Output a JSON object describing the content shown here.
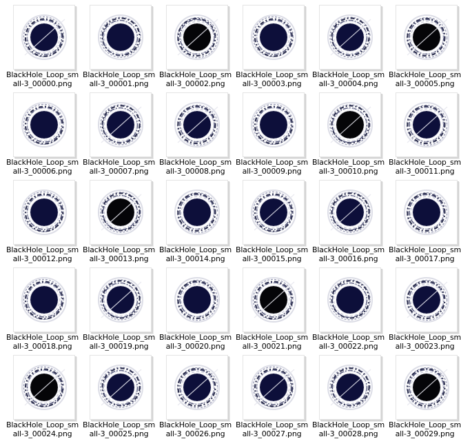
{
  "colors": {
    "core_blue": "#0d0f3a",
    "core_black": "#050508",
    "ring": "#2c2f4e"
  },
  "files": [
    {
      "line1": "BlackHole_Loop_sm",
      "line2": "all-3_00000.png",
      "variant": "blue",
      "streak": true
    },
    {
      "line1": "BlackHole_Loop_sm",
      "line2": "all-3_00001.png",
      "variant": "blue",
      "streak": false
    },
    {
      "line1": "BlackHole_Loop_sm",
      "line2": "all-3_00002.png",
      "variant": "black",
      "streak": true
    },
    {
      "line1": "BlackHole_Loop_sm",
      "line2": "all-3_00003.png",
      "variant": "blue",
      "streak": false
    },
    {
      "line1": "BlackHole_Loop_sm",
      "line2": "all-3_00004.png",
      "variant": "blue",
      "streak": true
    },
    {
      "line1": "BlackHole_Loop_sm",
      "line2": "all-3_00005.png",
      "variant": "black",
      "streak": true
    },
    {
      "line1": "BlackHole_Loop_sm",
      "line2": "all-3_00006.png",
      "variant": "blue",
      "streak": false
    },
    {
      "line1": "BlackHole_Loop_sm",
      "line2": "all-3_00007.png",
      "variant": "blue",
      "streak": true
    },
    {
      "line1": "BlackHole_Loop_sm",
      "line2": "all-3_00008.png",
      "variant": "blue",
      "streak": true
    },
    {
      "line1": "BlackHole_Loop_sm",
      "line2": "all-3_00009.png",
      "variant": "blue",
      "streak": false
    },
    {
      "line1": "BlackHole_Loop_sm",
      "line2": "all-3_00010.png",
      "variant": "black",
      "streak": true
    },
    {
      "line1": "BlackHole_Loop_sm",
      "line2": "all-3_00011.png",
      "variant": "blue",
      "streak": true
    },
    {
      "line1": "BlackHole_Loop_sm",
      "line2": "all-3_00012.png",
      "variant": "blue",
      "streak": false
    },
    {
      "line1": "BlackHole_Loop_sm",
      "line2": "all-3_00013.png",
      "variant": "black",
      "streak": true
    },
    {
      "line1": "BlackHole_Loop_sm",
      "line2": "all-3_00014.png",
      "variant": "blue",
      "streak": false
    },
    {
      "line1": "BlackHole_Loop_sm",
      "line2": "all-3_00015.png",
      "variant": "blue",
      "streak": true
    },
    {
      "line1": "BlackHole_Loop_sm",
      "line2": "all-3_00016.png",
      "variant": "blue",
      "streak": true
    },
    {
      "line1": "BlackHole_Loop_sm",
      "line2": "all-3_00017.png",
      "variant": "blue",
      "streak": false
    },
    {
      "line1": "BlackHole_Loop_sm",
      "line2": "all-3_00018.png",
      "variant": "blue",
      "streak": false
    },
    {
      "line1": "BlackHole_Loop_sm",
      "line2": "all-3_00019.png",
      "variant": "blue",
      "streak": true
    },
    {
      "line1": "BlackHole_Loop_sm",
      "line2": "all-3_00020.png",
      "variant": "blue",
      "streak": false
    },
    {
      "line1": "BlackHole_Loop_sm",
      "line2": "all-3_00021.png",
      "variant": "black",
      "streak": true
    },
    {
      "line1": "BlackHole_Loop_sm",
      "line2": "all-3_00022.png",
      "variant": "blue",
      "streak": false
    },
    {
      "line1": "BlackHole_Loop_sm",
      "line2": "all-3_00023.png",
      "variant": "blue",
      "streak": true
    },
    {
      "line1": "BlackHole_Loop_sm",
      "line2": "all-3_00024.png",
      "variant": "black",
      "streak": true
    },
    {
      "line1": "BlackHole_Loop_sm",
      "line2": "all-3_00025.png",
      "variant": "blue",
      "streak": true
    },
    {
      "line1": "BlackHole_Loop_sm",
      "line2": "all-3_00026.png",
      "variant": "blue",
      "streak": true
    },
    {
      "line1": "BlackHole_Loop_sm",
      "line2": "all-3_00027.png",
      "variant": "blue",
      "streak": true
    },
    {
      "line1": "BlackHole_Loop_sm",
      "line2": "all-3_00028.png",
      "variant": "blue",
      "streak": true
    },
    {
      "line1": "BlackHole_Loop_sm",
      "line2": "all-3_00029.png",
      "variant": "black",
      "streak": true
    }
  ]
}
